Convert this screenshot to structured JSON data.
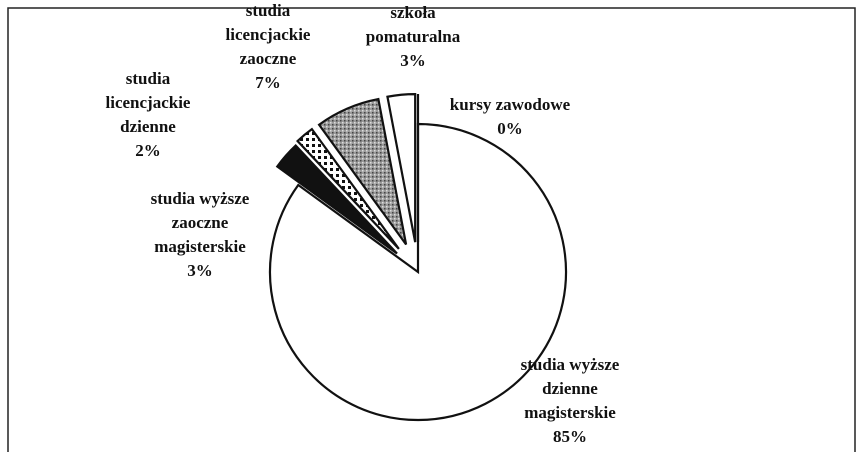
{
  "chart_data": {
    "type": "pie",
    "categories": [
      "studia wyższe\ndzienne\nmagisterskie",
      "studia wyższe\nzaoczne\nmagisterskie",
      "studia\nlicencjackie\ndzienne",
      "studia\nlicencjackie\nzaoczne",
      "szkoła\npomaturalna",
      "kursy zawodowe"
    ],
    "values": [
      85,
      3,
      2,
      7,
      3,
      0
    ],
    "value_labels": [
      "85%",
      "3%",
      "2%",
      "7%",
      "3%",
      "0%"
    ],
    "colors": [
      "#ffffff",
      "#111111",
      "#d8d8d8",
      "#8c8c8c",
      "#ffffff",
      "#ffffff"
    ]
  }
}
